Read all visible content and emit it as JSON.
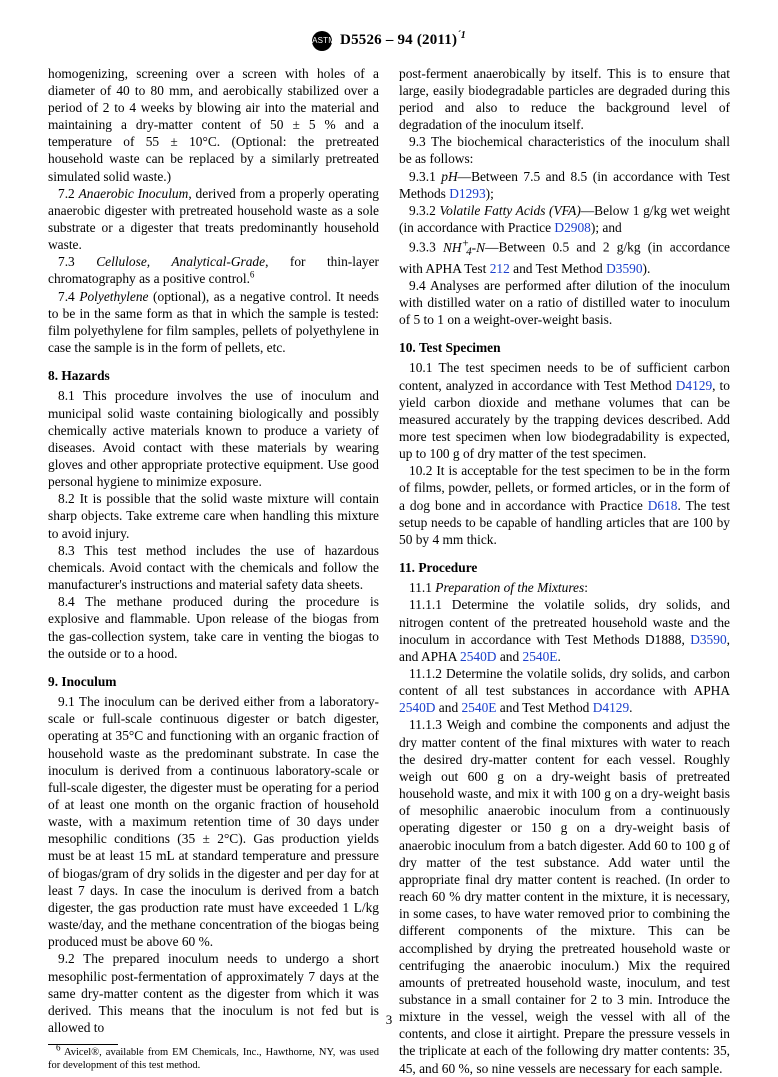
{
  "header": {
    "designation": "D5526 – 94 (2011)",
    "superscript": "´1"
  },
  "page_number": "3",
  "col1": {
    "para7_1_cont": "homogenizing, screening over a screen with holes of a diameter of 40 to 80 mm, and aerobically stabilized over a period of 2 to 4 weeks by blowing air into the material and maintaining a dry-matter content of 50 ± 5 % and a temperature of 55 ± 10°C. (Optional: the pretreated household waste can be replaced by a similarly pretreated simulated solid waste.)",
    "para7_2_num": "7.2 ",
    "para7_2_ital": "Anaerobic Inoculum",
    "para7_2_rest": ", derived from a properly operating anaerobic digester with pretreated household waste as a sole substrate or a digester that treats predominantly household waste.",
    "para7_3_num": "7.3 ",
    "para7_3_ital": "Cellulose, Analytical-Grade",
    "para7_3_rest": ", for thin-layer chromatography as a positive control.",
    "para7_4_num": "7.4 ",
    "para7_4_ital": "Polyethylene",
    "para7_4_rest": " (optional), as a negative control. It needs to be in the same form as that in which the sample is tested: film polyethylene for film samples, pellets of polyethylene in case the sample is in the form of pellets, etc.",
    "sec8_title": "8. Hazards",
    "para8_1": "8.1 This procedure involves the use of inoculum and municipal solid waste containing biologically and possibly chemically active materials known to produce a variety of diseases. Avoid contact with these materials by wearing gloves and other appropriate protective equipment. Use good personal hygiene to minimize exposure.",
    "para8_2": "8.2 It is possible that the solid waste mixture will contain sharp objects. Take extreme care when handling this mixture to avoid injury.",
    "para8_3": "8.3 This test method includes the use of hazardous chemicals. Avoid contact with the chemicals and follow the manufacturer's instructions and material safety data sheets.",
    "para8_4": "8.4 The methane produced during the procedure is explosive and flammable. Upon release of the biogas from the gas-collection system, take care in venting the biogas to the outside or to a hood.",
    "sec9_title": "9. Inoculum",
    "para9_1": "9.1 The inoculum can be derived either from a laboratory-scale or full-scale continuous digester or batch digester, operating at 35°C and functioning with an organic fraction of household waste as the predominant substrate. In case the inoculum is derived from a continuous laboratory-scale or full-scale digester, the digester must be operating for a period of at least one month on the organic fraction of household waste, with a maximum retention time of 30 days under mesophilic conditions (35 ± 2°C). Gas production yields must be at least 15 mL at standard temperature and pressure of biogas/gram of dry solids in the digester and per day for at least 7 days. In case the inoculum is derived from a batch digester, the gas production rate must have exceeded 1 L/kg waste/day, and the methane concentration of the biogas being produced must be above 60 %.",
    "para9_2": "9.2 The prepared inoculum needs to undergo a short mesophilic post-fermentation of approximately 7 days at the same dry-matter content as the digester from which it was derived. This means that the inoculum is not fed but is allowed to",
    "footnote6": " Avicel®, available from EM Chemicals, Inc., Hawthorne, NY, was used for development of this test method."
  },
  "col2": {
    "para9_2_cont": "post-ferment anaerobically by itself. This is to ensure that large, easily biodegradable particles are degraded during this period and also to reduce the background level of degradation of the inoculum itself.",
    "para9_3": "9.3 The biochemical characteristics of the inoculum shall be as follows:",
    "para9_3_1_num": "9.3.1 ",
    "para9_3_1_ital": "pH",
    "para9_3_1_rest": "—Between 7.5 and 8.5 (in accordance with Test Methods ",
    "para9_3_1_link": "D1293",
    "para9_3_1_end": ");",
    "para9_3_2_num": "9.3.2 ",
    "para9_3_2_ital": "Volatile Fatty Acids (VFA)",
    "para9_3_2_rest": "—Below 1 g/kg wet weight (in accordance with Practice ",
    "para9_3_2_link": "D2908",
    "para9_3_2_end": "); and",
    "para9_3_3_a": "9.3.3 ",
    "para9_3_3_rest": "—Between 0.5 and 2 g/kg (in accordance with APHA Test ",
    "para9_3_3_link1": "212",
    "para9_3_3_mid": " and Test Method ",
    "para9_3_3_link2": "D3590",
    "para9_3_3_end": ").",
    "para9_4": "9.4 Analyses are performed after dilution of the inoculum with distilled water on a ratio of distilled water to inoculum of 5 to 1 on a weight-over-weight basis.",
    "sec10_title": "10. Test Specimen",
    "para10_1_a": "10.1 The test specimen needs to be of sufficient carbon content, analyzed in accordance with Test Method ",
    "para10_1_link": "D4129",
    "para10_1_b": ", to yield carbon dioxide and methane volumes that can be measured accurately by the trapping devices described. Add more test specimen when low biodegradability is expected, up to 100 g of dry matter of the test specimen.",
    "para10_2_a": "10.2 It is acceptable for the test specimen to be in the form of films, powder, pellets, or formed articles, or in the form of a dog bone and in accordance with Practice ",
    "para10_2_link": "D618",
    "para10_2_b": ". The test setup needs to be capable of handling articles that are 100 by 50 by 4 mm thick.",
    "sec11_title": "11. Procedure",
    "para11_1_num": "11.1 ",
    "para11_1_ital": "Preparation of the Mixtures",
    "para11_1_end": ":",
    "para11_1_1_a": "11.1.1 Determine the volatile solids, dry solids, and nitrogen content of the pretreated household waste and the inoculum in accordance with Test Methods D1888, ",
    "para11_1_1_link1": "D3590",
    "para11_1_1_mid": ", and APHA ",
    "para11_1_1_link2": "2540D",
    "para11_1_1_mid2": " and ",
    "para11_1_1_link3": "2540E",
    "para11_1_1_end": ".",
    "para11_1_2_a": "11.1.2 Determine the volatile solids, dry solids, and carbon content of all test substances in accordance with APHA ",
    "para11_1_2_link1": "2540D",
    "para11_1_2_mid": " and ",
    "para11_1_2_link2": "2540E",
    "para11_1_2_mid2": " and Test Method ",
    "para11_1_2_link3": "D4129",
    "para11_1_2_end": ".",
    "para11_1_3": "11.1.3 Weigh and combine the components and adjust the dry matter content of the final mixtures with water to reach the desired dry-matter content for each vessel. Roughly weigh out 600 g on a dry-weight basis of pretreated household waste, and mix it with 100 g on a dry-weight basis of mesophilic anaerobic inoculum from a continuously operating digester or 150 g on a dry-weight basis of anaerobic inoculum from a batch digester. Add 60 to 100 g of dry matter of the test substance. Add water until the appropriate final dry matter content is reached. (In order to reach 60 % dry matter content in the mixture, it is necessary, in some cases, to have water removed prior to combining the different components of the mixture. This can be accomplished by drying the pretreated household waste or centrifuging the anaerobic inoculum.) Mix the required amounts of pretreated household waste, inoculum, and test substance in a small container for 2 to 3 min. Introduce the mixture in the vessel, weigh the vessel with all of the contents, and close it airtight. Prepare the pressure vessels in the triplicate at each of the following dry matter contents: 35, 45, and 60 %, so nine vessels are necessary for each sample."
  }
}
